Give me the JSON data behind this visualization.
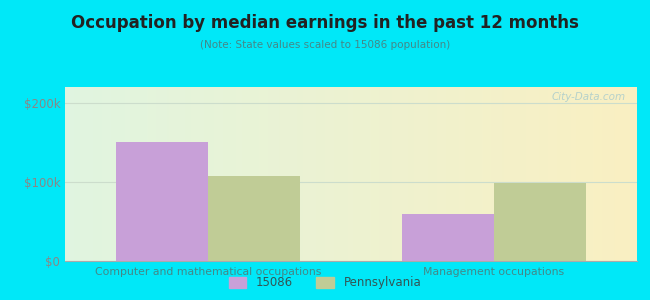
{
  "title": "Occupation by median earnings in the past 12 months",
  "subtitle": "(Note: State values scaled to 15086 population)",
  "categories": [
    "Computer and mathematical occupations",
    "Management occupations"
  ],
  "values_15086": [
    150000,
    60000
  ],
  "values_pennsylvania": [
    108000,
    98000
  ],
  "ylim": [
    0,
    220000
  ],
  "yticks": [
    0,
    100000,
    200000
  ],
  "ytick_labels": [
    "$0",
    "$100k",
    "$200k"
  ],
  "bar_color_15086": "#c8a0d8",
  "bar_color_pennsylvania": "#c0cc96",
  "background_outer": "#00e8f8",
  "legend_label_15086": "15086",
  "legend_label_pennsylvania": "Pennsylvania",
  "bar_width": 0.32,
  "watermark": "City-Data.com",
  "title_color": "#222222",
  "subtitle_color": "#448888",
  "tick_color": "#888888",
  "xlabel_color": "#448888"
}
